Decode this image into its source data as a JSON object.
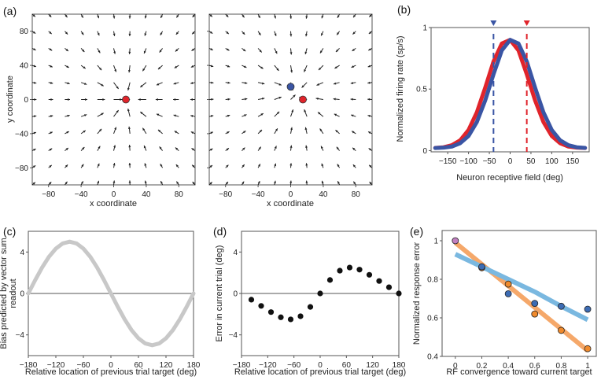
{
  "panel_labels": {
    "a": "(a)",
    "b": "(b)",
    "c": "(c)",
    "d": "(d)",
    "e": "(e)"
  },
  "colors": {
    "red": "#e0242b",
    "blue": "#3a55a4",
    "gray": "#c8c8c8",
    "orange": "#f5a86a",
    "lightblue": "#7ab8e0",
    "orange_pt": "#f08a2c",
    "blue_pt": "#3d6cb4",
    "purple_pt": "#c17fc0"
  },
  "chart_data": [
    {
      "id": "a-left",
      "type": "vector-field",
      "xlabel": "x coordinate",
      "ylabel": "y coordinate",
      "xlim": [
        -100,
        100
      ],
      "ylim": [
        -100,
        100
      ],
      "xticks": [
        -80,
        -40,
        0,
        40,
        80
      ],
      "yticks": [
        -80,
        -40,
        0,
        40,
        80
      ],
      "grid_step": 20,
      "attractors": [
        {
          "x": 15,
          "y": 0,
          "color": "red"
        }
      ]
    },
    {
      "id": "a-right",
      "type": "vector-field",
      "xlabel": "x coordinate",
      "ylabel": "",
      "xlim": [
        -100,
        100
      ],
      "ylim": [
        -100,
        100
      ],
      "xticks": [
        -80,
        -40,
        0,
        40,
        80
      ],
      "yticks": [],
      "grid_step": 20,
      "attractors": [
        {
          "x": 15,
          "y": 0,
          "color": "red"
        },
        {
          "x": 0,
          "y": 15,
          "color": "blue"
        }
      ]
    },
    {
      "id": "b",
      "type": "line",
      "xlabel": "Neuron receptive field (deg)",
      "ylabel": "Normalized firing rate (sp/s)",
      "xlim": [
        -190,
        190
      ],
      "ylim": [
        -0.01,
        1
      ],
      "xticks": [
        -150,
        -100,
        -50,
        0,
        50,
        100,
        150
      ],
      "yticks": [
        0,
        0.5,
        1
      ],
      "ytick_labels": [
        "0",
        "0.5",
        "1"
      ],
      "x": [
        -180,
        -160,
        -140,
        -120,
        -100,
        -80,
        -60,
        -40,
        -20,
        0,
        20,
        40,
        60,
        80,
        100,
        120,
        140,
        160,
        180
      ],
      "series": [
        {
          "name": "red",
          "color": "red",
          "values": [
            0.022,
            0.027,
            0.044,
            0.084,
            0.168,
            0.312,
            0.511,
            0.724,
            0.87,
            0.9,
            0.814,
            0.62,
            0.407,
            0.232,
            0.119,
            0.06,
            0.033,
            0.024,
            0.021
          ]
        },
        {
          "name": "blue",
          "color": "blue",
          "values": [
            0.021,
            0.024,
            0.033,
            0.06,
            0.119,
            0.232,
            0.407,
            0.62,
            0.814,
            0.9,
            0.87,
            0.724,
            0.511,
            0.312,
            0.168,
            0.084,
            0.044,
            0.027,
            0.022
          ]
        }
      ],
      "markers": [
        {
          "x": -40,
          "color": "blue"
        },
        {
          "x": 40,
          "color": "red"
        }
      ]
    },
    {
      "id": "c",
      "type": "line",
      "xlabel": "Relative location of previous trial target (deg)",
      "ylabel": [
        "Bias predicted by vector sum",
        "readout"
      ],
      "xlim": [
        -180,
        180
      ],
      "ylim": [
        -6,
        6
      ],
      "xticks": [
        -180,
        -120,
        -60,
        0,
        60,
        120,
        180
      ],
      "yticks": [
        -4,
        0,
        4
      ],
      "x": [
        -180,
        -165,
        -150,
        -135,
        -120,
        -105,
        -90,
        -75,
        -60,
        -45,
        -30,
        -15,
        0,
        15,
        30,
        45,
        60,
        75,
        90,
        105,
        120,
        135,
        150,
        165,
        180
      ],
      "series": [
        {
          "name": "bias",
          "color": "gray",
          "values": [
            0,
            1.29,
            2.5,
            3.54,
            4.33,
            4.83,
            5,
            4.83,
            4.33,
            3.54,
            2.5,
            1.29,
            0,
            -1.29,
            -2.5,
            -3.54,
            -4.33,
            -4.83,
            -5,
            -4.83,
            -4.33,
            -3.54,
            -2.5,
            -1.29,
            0
          ]
        }
      ]
    },
    {
      "id": "d",
      "type": "scatter",
      "xlabel": "Relative location of previous trial target (deg)",
      "ylabel": "Error in current trial (deg)",
      "xlim": [
        -180,
        180
      ],
      "ylim": [
        -6,
        6
      ],
      "xticks": [
        -180,
        -120,
        -60,
        0,
        60,
        120,
        180
      ],
      "yticks": [
        -4,
        0,
        4
      ],
      "x": [
        -157.5,
        -135,
        -112.5,
        -90,
        -67.5,
        -45,
        -22.5,
        0,
        22.5,
        45,
        67.5,
        90,
        112.5,
        135,
        157.5,
        180
      ],
      "values": [
        -0.6,
        -1.2,
        -1.8,
        -2.3,
        -2.5,
        -2.2,
        -1.3,
        0,
        1.3,
        2.2,
        2.5,
        2.3,
        1.8,
        1.2,
        0.6,
        0
      ]
    },
    {
      "id": "e",
      "type": "scatter",
      "xlabel": "RF convergence toward current target",
      "ylabel": "Normalized response error",
      "xlim": [
        -0.1,
        1.065
      ],
      "ylim": [
        0.4,
        1.053
      ],
      "xticks": [
        0,
        0.2,
        0.4,
        0.6,
        0.8,
        1
      ],
      "yticks": [
        0.4,
        0.6,
        0.8,
        1
      ],
      "ytick_labels": [
        "0.4",
        "0.6",
        "0.8",
        "1"
      ],
      "series": [
        {
          "name": "orange",
          "color": "orange_pt",
          "x": [
            0.2,
            0.4,
            0.6,
            0.8,
            1
          ],
          "values": [
            0.86,
            0.775,
            0.62,
            0.535,
            0.44
          ]
        },
        {
          "name": "blue",
          "color": "blue_pt",
          "x": [
            0.2,
            0.4,
            0.6,
            0.8,
            1
          ],
          "values": [
            0.865,
            0.725,
            0.675,
            0.66,
            0.645
          ]
        },
        {
          "name": "origin",
          "color": "purple_pt",
          "x": [
            0
          ],
          "values": [
            1
          ]
        }
      ],
      "fits": [
        {
          "name": "orange-fit",
          "color": "orange",
          "x": [
            0,
            1
          ],
          "values": [
            0.99,
            0.43
          ]
        },
        {
          "name": "blue-fit",
          "color": "lightblue",
          "x": [
            0,
            0.2,
            0.4,
            0.6,
            0.8,
            1
          ],
          "values": [
            0.93,
            0.865,
            0.8,
            0.735,
            0.66,
            0.59
          ]
        }
      ]
    }
  ]
}
